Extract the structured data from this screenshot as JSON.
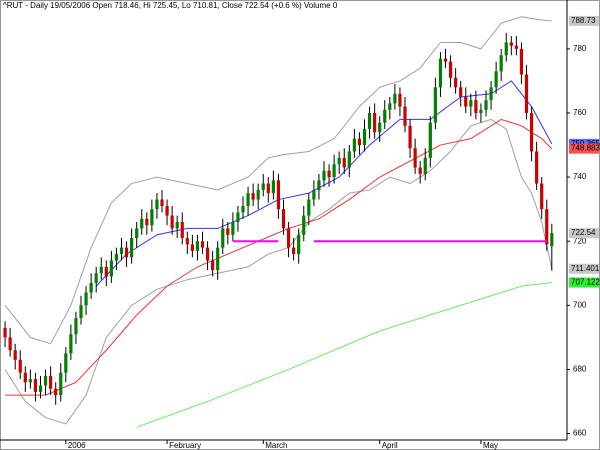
{
  "chart_data": {
    "type": "candlestick",
    "title": "^RUT - Daily 19/05/2006 Open 718.46, Hi 725.45, Lo 710.81, Close 722.54 (+0.6 %) Volume 0",
    "xlim": [
      -1,
      111
    ],
    "ylim": [
      658,
      794
    ],
    "yticks": [
      660,
      680,
      700,
      720,
      740,
      760,
      780
    ],
    "xticks": [
      {
        "value": 12,
        "label": "2006"
      },
      {
        "value": 32,
        "label": "February"
      },
      {
        "value": 51,
        "label": "March"
      },
      {
        "value": 74,
        "label": "April"
      },
      {
        "value": 94,
        "label": "May"
      }
    ],
    "up_color": "#008000",
    "down_color": "#cc0000",
    "open": [
      693,
      690,
      686,
      683,
      679,
      676,
      677,
      673,
      675,
      678,
      674,
      672,
      679,
      685,
      691,
      696,
      700,
      704,
      707,
      710,
      712,
      709,
      714,
      716,
      718,
      715,
      721,
      724,
      727,
      725,
      730,
      733,
      731,
      728,
      724,
      726,
      721,
      719,
      717,
      720,
      718,
      714,
      711,
      718,
      724,
      722,
      726,
      729,
      731,
      735,
      733,
      736,
      738,
      735,
      739,
      730,
      724,
      718,
      716,
      722,
      728,
      733,
      736,
      739,
      742,
      740,
      744,
      746,
      743,
      748,
      752,
      750,
      755,
      760,
      754,
      757,
      761,
      763,
      766,
      762,
      756,
      749,
      743,
      741,
      746,
      757,
      768,
      777,
      776,
      771,
      768,
      765,
      762,
      764,
      760,
      761,
      764,
      768,
      773,
      778,
      782,
      781,
      780,
      772,
      760,
      748,
      738,
      730,
      718.46
    ],
    "high": [
      695,
      693,
      688,
      686,
      681,
      680,
      679,
      678,
      680,
      681,
      676,
      682,
      687,
      694,
      698,
      703,
      706,
      710,
      712,
      715,
      714,
      717,
      718,
      721,
      720,
      724,
      726,
      730,
      729,
      733,
      735,
      736,
      733,
      731,
      728,
      729,
      723,
      722,
      722,
      723,
      720,
      717,
      720,
      727,
      726,
      729,
      731,
      734,
      737,
      738,
      738,
      741,
      740,
      742,
      741,
      733,
      726,
      721,
      724,
      731,
      735,
      739,
      741,
      745,
      744,
      747,
      748,
      749,
      750,
      755,
      754,
      758,
      762,
      763,
      759,
      764,
      765,
      769,
      768,
      765,
      758,
      752,
      745,
      749,
      759,
      771,
      779,
      780,
      778,
      774,
      770,
      768,
      766,
      767,
      763,
      767,
      770,
      776,
      780,
      785,
      784,
      784,
      782,
      775,
      762,
      751,
      740,
      733,
      725.45
    ],
    "low": [
      687,
      684,
      680,
      677,
      673,
      674,
      670,
      671,
      672,
      672,
      669,
      670,
      676,
      683,
      688,
      694,
      697,
      702,
      704,
      708,
      706,
      707,
      711,
      714,
      712,
      713,
      718,
      722,
      722,
      723,
      727,
      729,
      725,
      722,
      721,
      719,
      716,
      715,
      714,
      716,
      711,
      709,
      708,
      716,
      719,
      720,
      723,
      727,
      728,
      731,
      730,
      734,
      732,
      733,
      727,
      722,
      715,
      714,
      713,
      720,
      725,
      731,
      733,
      737,
      737,
      738,
      741,
      741,
      740,
      746,
      747,
      748,
      752,
      752,
      751,
      755,
      758,
      761,
      759,
      754,
      746,
      741,
      738,
      739,
      743,
      755,
      765,
      774,
      768,
      766,
      762,
      760,
      759,
      758,
      757,
      759,
      761,
      766,
      770,
      776,
      778,
      778,
      769,
      758,
      745,
      736,
      727,
      717,
      710.81
    ],
    "close": [
      690,
      686,
      683,
      679,
      676,
      677,
      673,
      675,
      678,
      674,
      672,
      679,
      685,
      691,
      696,
      700,
      704,
      707,
      710,
      712,
      709,
      714,
      716,
      718,
      715,
      721,
      724,
      727,
      725,
      730,
      733,
      731,
      728,
      724,
      726,
      721,
      719,
      717,
      720,
      718,
      714,
      711,
      718,
      724,
      722,
      726,
      729,
      731,
      735,
      733,
      736,
      738,
      735,
      739,
      730,
      724,
      718,
      716,
      722,
      728,
      733,
      736,
      739,
      742,
      740,
      744,
      746,
      743,
      748,
      752,
      750,
      755,
      760,
      754,
      757,
      761,
      763,
      766,
      762,
      756,
      749,
      743,
      741,
      746,
      757,
      768,
      777,
      776,
      771,
      768,
      765,
      762,
      764,
      760,
      761,
      764,
      768,
      773,
      778,
      782,
      781,
      780,
      772,
      760,
      748,
      738,
      730,
      719,
      722.54
    ],
    "overlays": [
      {
        "color": "#a0a0a0",
        "x": [
          0,
          5,
          9,
          13,
          17,
          21,
          25,
          30,
          36,
          42,
          48,
          52,
          55,
          60,
          65,
          70,
          74,
          78,
          82,
          86,
          90,
          94,
          98,
          102,
          106,
          108
        ],
        "values": [
          700,
          690,
          688,
          700,
          718,
          732,
          738,
          740,
          738,
          736,
          740,
          746,
          747,
          748,
          752,
          762,
          768,
          770,
          774,
          782,
          782,
          780,
          788,
          790,
          789,
          788.73
        ]
      },
      {
        "color": "#a0a0a0",
        "x": [
          0,
          4,
          8,
          12,
          16,
          20,
          25,
          30,
          36,
          42,
          48,
          52,
          56,
          60,
          64,
          68,
          72,
          76,
          80,
          84,
          88,
          92,
          96,
          99,
          102,
          104,
          106,
          108
        ],
        "values": [
          680,
          670,
          665,
          663,
          672,
          690,
          700,
          705,
          708,
          710,
          712,
          716,
          718,
          726,
          730,
          735,
          736,
          740,
          738,
          742,
          748,
          756,
          758,
          755,
          740,
          735,
          726,
          711.401
        ]
      },
      {
        "color": "#3333ff",
        "x": [
          18,
          24,
          30,
          36,
          42,
          48,
          54,
          60,
          66,
          72,
          78,
          84,
          90,
          96,
          100,
          104,
          108
        ],
        "values": [
          706,
          716,
          722,
          724,
          724,
          728,
          733,
          735,
          740,
          750,
          758,
          758,
          765,
          766,
          770,
          762,
          750.365
        ]
      },
      {
        "color": "#ee3333",
        "x": [
          0,
          8,
          14,
          20,
          26,
          32,
          38,
          44,
          50,
          56,
          62,
          68,
          74,
          80,
          86,
          92,
          98,
          102,
          106,
          108
        ],
        "values": [
          672,
          672,
          676,
          686,
          697,
          706,
          712,
          716,
          720,
          724,
          727,
          733,
          740,
          745,
          750,
          752,
          758,
          756,
          752,
          748.883
        ]
      },
      {
        "color": "#66ee66",
        "x": [
          26,
          40,
          56,
          74,
          90,
          102,
          108
        ],
        "values": [
          662,
          670,
          680,
          692,
          700,
          706,
          707.122
        ]
      }
    ],
    "level": {
      "value": 720,
      "color": "#ff00ff",
      "segments": [
        [
          45,
          54
        ],
        [
          61,
          107
        ]
      ]
    },
    "price_labels": [
      {
        "value": 788.73,
        "color": "#c8c8c8"
      },
      {
        "value": 750.365,
        "color": "#5b6cff"
      },
      {
        "value": 748.883,
        "color": "#ff5050"
      },
      {
        "value": 722.54,
        "color": "#c8c8c8"
      },
      {
        "value": 711.401,
        "color": "#c8c8c8"
      },
      {
        "value": 707.122,
        "color": "#33ee33"
      }
    ]
  }
}
